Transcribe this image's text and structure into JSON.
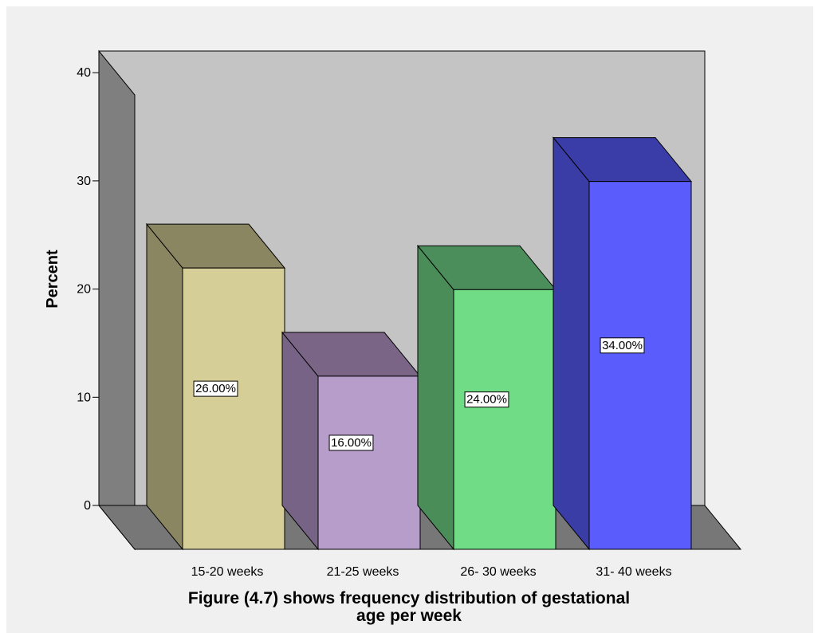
{
  "chart_data": {
    "type": "bar",
    "ylabel": "Percent",
    "ylim": [
      0,
      40
    ],
    "yticks": [
      "0",
      "10",
      "20",
      "30",
      "40"
    ],
    "categories": [
      "15-20 weeks",
      "21-25 weeks",
      "26- 30 weeks",
      "31- 40 weeks"
    ],
    "values": [
      26,
      16,
      24,
      34
    ],
    "data_labels": [
      "26.00%",
      "16.00%",
      "24.00%",
      "34.00%"
    ],
    "colors": {
      "front": [
        "#d5cf97",
        "#b79dca",
        "#70dc86",
        "#5a5cfc"
      ],
      "top": [
        "#898661",
        "#7a6587",
        "#4b8e5b",
        "#3a3ca8"
      ],
      "side": [
        "#8a8661",
        "#766385",
        "#4a8d58",
        "#3b3da7"
      ]
    },
    "wall_colors": {
      "back": "#c4c4c4",
      "left": "#7f7f7f",
      "floor": "#777777"
    }
  },
  "caption": {
    "line1": "Figure (4.7) shows frequency distribution of gestational",
    "line2": "age per week"
  }
}
